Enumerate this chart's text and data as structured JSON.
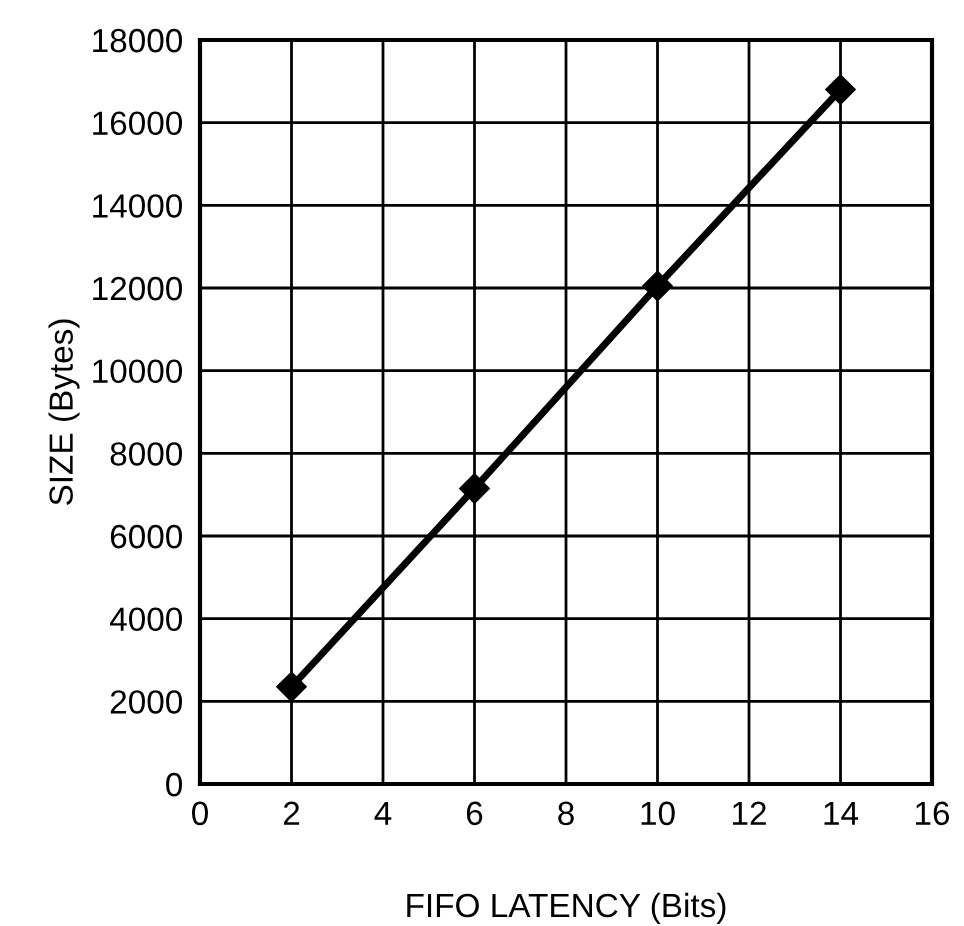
{
  "chart_data": {
    "type": "line",
    "xlabel": "FIFO LATENCY (Bits)",
    "ylabel": "SIZE (Bytes)",
    "x": [
      2,
      6,
      10,
      14
    ],
    "series": [
      {
        "color": "#000000",
        "values": [
          2350,
          7150,
          12050,
          16800
        ]
      }
    ],
    "xlim": [
      0,
      16
    ],
    "xticks": [
      0,
      2,
      4,
      6,
      8,
      10,
      12,
      14,
      16
    ],
    "ylim": [
      0,
      18000
    ],
    "yticks": [
      0,
      2000,
      4000,
      6000,
      8000,
      10000,
      12000,
      14000,
      16000,
      18000
    ],
    "grid": true,
    "marker": "diamond",
    "line_style": "solid"
  }
}
